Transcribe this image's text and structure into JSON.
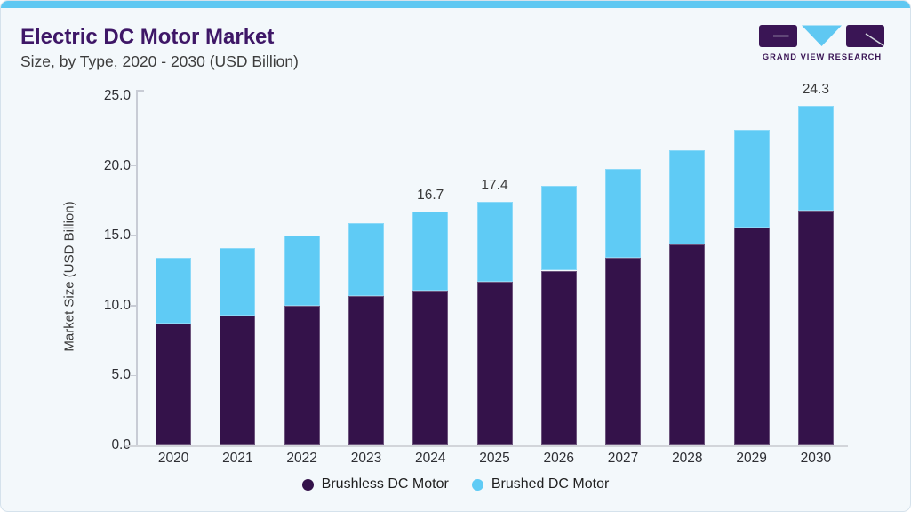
{
  "header": {
    "title": "Electric DC Motor Market",
    "subtitle": "Size, by Type, 2020 - 2030 (USD Billion)"
  },
  "logo": {
    "text": "GRAND VIEW RESEARCH"
  },
  "theme": {
    "accent_cyan": "#5fc8f2",
    "title_purple": "#3e1767",
    "logo_purple": "#3a1555",
    "card_bg": "#f3f8fb"
  },
  "chart_data": {
    "type": "bar",
    "stacked": true,
    "title": "Electric DC Motor Market Size, by Type, 2020 - 2030 (USD Billion)",
    "xlabel": "",
    "ylabel": "Market Size (USD Billion)",
    "ylim": [
      0,
      25
    ],
    "ytick_labels": [
      "25.0",
      "20.0",
      "15.0",
      "10.0",
      "5.0",
      "0.0"
    ],
    "grid": false,
    "legend_position": "bottom",
    "categories": [
      "2020",
      "2021",
      "2022",
      "2023",
      "2024",
      "2025",
      "2026",
      "2027",
      "2028",
      "2029",
      "2030"
    ],
    "series": [
      {
        "name": "Brushless DC Motor",
        "color": "#34124a",
        "values": [
          8.7,
          9.3,
          10.0,
          10.7,
          11.1,
          11.7,
          12.5,
          13.4,
          14.4,
          15.6,
          16.8
        ]
      },
      {
        "name": "Brushed DC Motor",
        "color": "#5fcbf5",
        "values": [
          4.7,
          4.8,
          5.0,
          5.2,
          5.6,
          5.7,
          6.1,
          6.4,
          6.7,
          7.0,
          7.5
        ]
      }
    ],
    "totals": [
      13.4,
      14.1,
      15.0,
      15.9,
      16.7,
      17.4,
      18.6,
      19.8,
      21.1,
      22.6,
      24.3
    ],
    "shown_total_labels": [
      "",
      "",
      "",
      "",
      "16.7",
      "17.4",
      "",
      "",
      "",
      "",
      "24.3"
    ]
  }
}
